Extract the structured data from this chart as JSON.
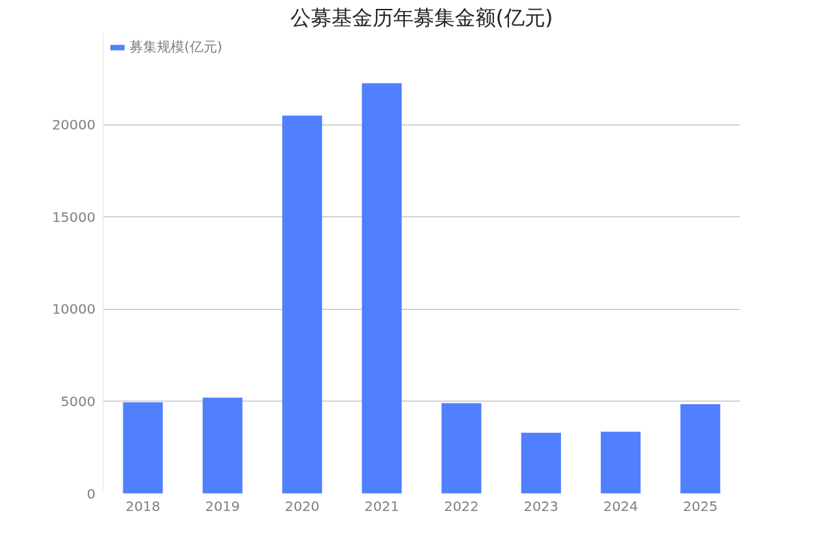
{
  "chart_data": {
    "type": "bar",
    "title": "公募基金历年募集金额(亿元)",
    "categories": [
      "2018",
      "2019",
      "2020",
      "2021",
      "2022",
      "2023",
      "2024",
      "2025"
    ],
    "series": [
      {
        "name": "募集规模(亿元)",
        "color": "#5080ff",
        "values": [
          4950,
          5200,
          20500,
          22250,
          4900,
          3300,
          3350,
          4850
        ]
      }
    ],
    "ylim": [
      0,
      25000
    ],
    "yticks": [
      0,
      5000,
      10000,
      15000,
      20000
    ],
    "grid": "y",
    "legend": "top left"
  }
}
